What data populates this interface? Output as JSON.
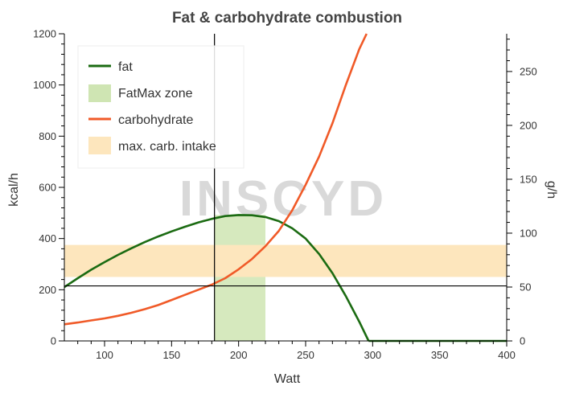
{
  "chart_data": {
    "type": "line",
    "title": "Fat & carbohydrate combustion",
    "xlabel": "Watt",
    "ylabel": "kcal/h",
    "y2label": "g/h",
    "xlim": [
      70,
      400
    ],
    "ylim": [
      0,
      1200
    ],
    "y2lim": [
      0,
      285
    ],
    "xticks": [
      100,
      150,
      200,
      250,
      300,
      350,
      400
    ],
    "yticks": [
      0,
      200,
      400,
      600,
      800,
      1000,
      1200
    ],
    "y2ticks": [
      0,
      50,
      100,
      150,
      200,
      250
    ],
    "grid": false,
    "legend_position": "top-left",
    "series": [
      {
        "name": "fat",
        "color": "#1b6b12",
        "x": [
          70,
          80,
          90,
          100,
          110,
          120,
          130,
          140,
          150,
          160,
          170,
          180,
          190,
          200,
          210,
          220,
          230,
          240,
          250,
          260,
          270,
          280,
          290,
          297
        ],
        "values": [
          210,
          245,
          278,
          308,
          336,
          362,
          386,
          408,
          428,
          446,
          463,
          477,
          488,
          492,
          491,
          484,
          468,
          440,
          400,
          340,
          265,
          175,
          75,
          0
        ]
      },
      {
        "name": "carbohydrate",
        "color": "#f05a28",
        "x": [
          70,
          80,
          90,
          100,
          110,
          120,
          130,
          140,
          150,
          160,
          170,
          180,
          190,
          200,
          210,
          220,
          230,
          240,
          250,
          260,
          270,
          280,
          290,
          300
        ],
        "values": [
          65,
          72,
          80,
          88,
          98,
          110,
          124,
          140,
          160,
          180,
          200,
          220,
          245,
          280,
          320,
          370,
          430,
          510,
          610,
          720,
          850,
          1000,
          1140,
          1250
        ]
      }
    ],
    "bands": [
      {
        "name": "FatMax zone",
        "color": "#cfe5b3",
        "axis": "x",
        "range": [
          182,
          220
        ]
      },
      {
        "name": "max. carb. intake",
        "color": "#fde6bd",
        "axis": "y",
        "range": [
          250,
          375
        ]
      }
    ],
    "reference_lines": [
      {
        "axis": "x",
        "value": 182
      },
      {
        "axis": "y",
        "value": 215
      }
    ]
  },
  "legend": {
    "items": [
      {
        "label": "fat",
        "kind": "line",
        "color": "#1b6b12"
      },
      {
        "label": "FatMax zone",
        "kind": "patch",
        "color": "#cfe5b3"
      },
      {
        "label": "carbohydrate",
        "kind": "line",
        "color": "#f05a28"
      },
      {
        "label": "max. carb. intake",
        "kind": "patch",
        "color": "#fde6bd"
      }
    ]
  },
  "watermark": {
    "text": "INSCYD",
    "accent_color": "#f6c9c9"
  }
}
